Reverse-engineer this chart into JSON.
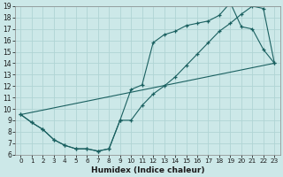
{
  "xlabel": "Humidex (Indice chaleur)",
  "bg_color": "#cce8e8",
  "grid_color": "#b0d4d4",
  "line_color": "#1a6060",
  "xlim": [
    -0.5,
    23.5
  ],
  "ylim": [
    6,
    19
  ],
  "xticks": [
    0,
    1,
    2,
    3,
    4,
    5,
    6,
    7,
    8,
    9,
    10,
    11,
    12,
    13,
    14,
    15,
    16,
    17,
    18,
    19,
    20,
    21,
    22,
    23
  ],
  "yticks": [
    6,
    7,
    8,
    9,
    10,
    11,
    12,
    13,
    14,
    15,
    16,
    17,
    18,
    19
  ],
  "curve1_x": [
    0,
    1,
    2,
    3,
    4,
    5,
    6,
    7,
    8,
    9,
    10,
    11,
    12,
    13,
    14,
    15,
    16,
    17,
    18,
    19,
    20,
    21,
    22,
    23
  ],
  "curve1_y": [
    9.5,
    8.8,
    8.2,
    7.3,
    6.8,
    6.5,
    6.5,
    6.3,
    6.5,
    9.0,
    11.7,
    12.1,
    15.8,
    16.5,
    16.8,
    17.3,
    17.5,
    17.7,
    18.2,
    19.3,
    17.2,
    17.0,
    15.2,
    14.0
  ],
  "curve2_x": [
    0,
    1,
    2,
    3,
    4,
    5,
    6,
    7,
    8,
    9,
    10,
    11,
    12,
    13,
    14,
    15,
    16,
    17,
    18,
    19,
    20,
    21,
    22,
    23
  ],
  "curve2_y": [
    9.5,
    8.8,
    8.2,
    7.3,
    6.8,
    6.5,
    6.5,
    6.3,
    6.5,
    9.0,
    9.0,
    10.3,
    11.3,
    12.0,
    12.8,
    13.8,
    14.8,
    15.8,
    16.8,
    17.5,
    18.3,
    19.0,
    18.8,
    14.0
  ],
  "curve3_x": [
    0,
    23
  ],
  "curve3_y": [
    9.5,
    14.0
  ]
}
